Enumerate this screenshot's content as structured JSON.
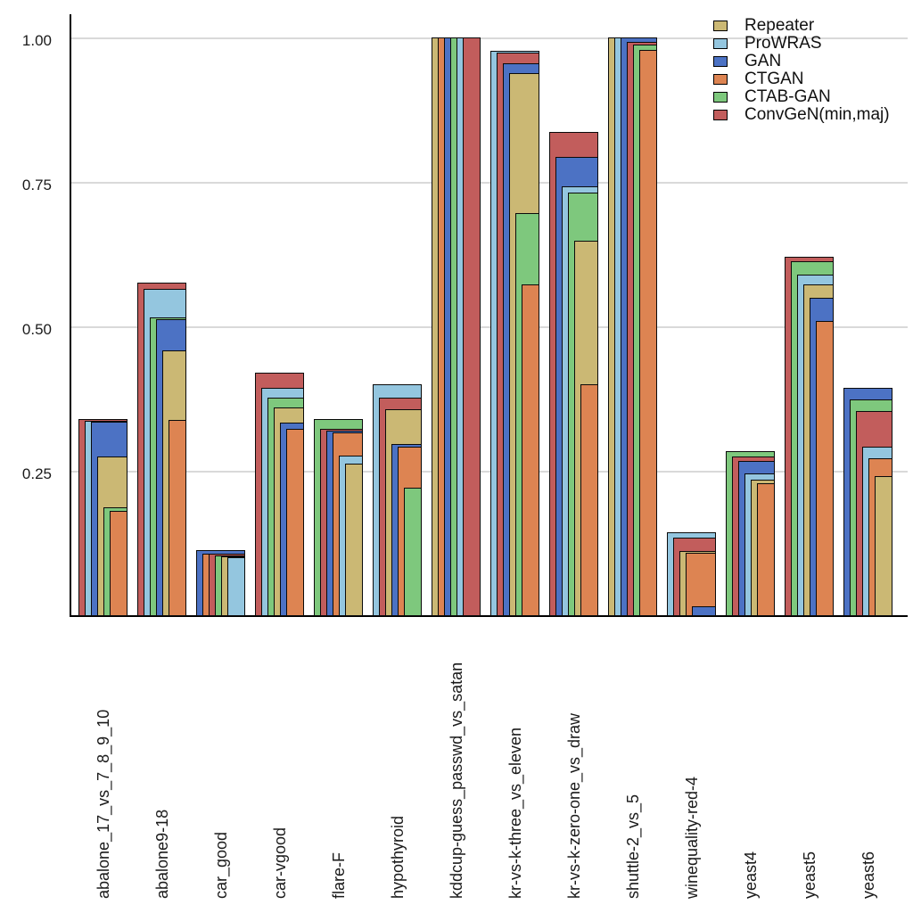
{
  "figure": {
    "background": "#ffffff",
    "gridline_color": "#d9d9d9",
    "axis_color": "#000000",
    "bar_border_color": "#0a0a0a"
  },
  "y_axis": {
    "tick_labels": [
      "1.00",
      "0.75",
      "0.50",
      "0.25"
    ],
    "tick_values": [
      1.0,
      0.75,
      0.5,
      0.25
    ]
  },
  "legend": {
    "items": [
      {
        "label": "Repeater",
        "color": "#CBB874"
      },
      {
        "label": "ProWRAS",
        "color": "#94C6DF"
      },
      {
        "label": "GAN",
        "color": "#4C72C4"
      },
      {
        "label": "CTGAN",
        "color": "#DD8452"
      },
      {
        "label": "CTAB-GAN",
        "color": "#7EC87D"
      },
      {
        "label": "ConvGeN(min,maj)",
        "color": "#C25D5C"
      }
    ]
  },
  "chart_data": {
    "type": "bar",
    "variant": "nested-overlapping-bars-sorted-desc",
    "title": "",
    "xlabel": "",
    "ylabel": "",
    "ylim": [
      0,
      1.02
    ],
    "grid": "horizontal",
    "legend_position": "top-right",
    "categories": [
      "abalone_17_vs_7_8_9_10",
      "abalone9-18",
      "car_good",
      "car-vgood",
      "flare-F",
      "hypothyroid",
      "kddcup-guess_passwd_vs_satan",
      "kr-vs-k-three_vs_eleven",
      "kr-vs-k-zero-one_vs_draw",
      "shuttle-2_vs_5",
      "winequality-red-4",
      "yeast4",
      "yeast5",
      "yeast6"
    ],
    "series": [
      {
        "name": "Repeater",
        "color": "#CBB874",
        "values": [
          0.275,
          0.459,
          0.102,
          0.36,
          0.262,
          0.357,
          1.0,
          0.938,
          0.648,
          1.0,
          0.111,
          0.234,
          0.573,
          0.241
        ]
      },
      {
        "name": "ProWRAS",
        "color": "#94C6DF",
        "values": [
          0.337,
          0.565,
          0.1,
          0.394,
          0.276,
          0.399,
          1.0,
          0.977,
          0.742,
          1.0,
          0.144,
          0.246,
          0.59,
          0.291
        ]
      },
      {
        "name": "GAN",
        "color": "#4C72C4",
        "values": [
          0.335,
          0.512,
          0.113,
          0.333,
          0.319,
          0.296,
          1.0,
          0.956,
          0.793,
          1.0,
          0.016,
          0.267,
          0.55,
          0.393
        ]
      },
      {
        "name": "CTGAN",
        "color": "#DD8452",
        "values": [
          0.181,
          0.338,
          0.107,
          0.322,
          0.316,
          0.292,
          1.0,
          0.573,
          0.399,
          0.979,
          0.108,
          0.229,
          0.509,
          0.271
        ]
      },
      {
        "name": "CTAB-GAN",
        "color": "#7EC87D",
        "values": [
          0.186,
          0.516,
          0.104,
          0.377,
          0.34,
          0.221,
          1.0,
          0.696,
          0.732,
          0.987,
          0.0,
          0.284,
          0.612,
          0.374
        ]
      },
      {
        "name": "ConvGeN(min,maj)",
        "color": "#C25D5C",
        "values": [
          0.34,
          0.575,
          0.106,
          0.42,
          0.322,
          0.376,
          1.0,
          0.974,
          0.836,
          0.993,
          0.134,
          0.275,
          0.62,
          0.354
        ]
      }
    ],
    "groups": [
      {
        "category": "abalone_17_vs_7_8_9_10",
        "bars": [
          {
            "series": "ConvGeN(min,maj)",
            "value": 0.34
          },
          {
            "series": "ProWRAS",
            "value": 0.337
          },
          {
            "series": "GAN",
            "value": 0.335
          },
          {
            "series": "Repeater",
            "value": 0.275
          },
          {
            "series": "CTAB-GAN",
            "value": 0.186
          },
          {
            "series": "CTGAN",
            "value": 0.181
          }
        ]
      },
      {
        "category": "abalone9-18",
        "bars": [
          {
            "series": "ConvGeN(min,maj)",
            "value": 0.575
          },
          {
            "series": "ProWRAS",
            "value": 0.565
          },
          {
            "series": "CTAB-GAN",
            "value": 0.516
          },
          {
            "series": "GAN",
            "value": 0.512
          },
          {
            "series": "Repeater",
            "value": 0.459
          },
          {
            "series": "CTGAN",
            "value": 0.338
          }
        ]
      },
      {
        "category": "car_good",
        "bars": [
          {
            "series": "GAN",
            "value": 0.113
          },
          {
            "series": "CTGAN",
            "value": 0.107
          },
          {
            "series": "ConvGeN(min,maj)",
            "value": 0.106
          },
          {
            "series": "CTAB-GAN",
            "value": 0.104
          },
          {
            "series": "Repeater",
            "value": 0.102
          },
          {
            "series": "ProWRAS",
            "value": 0.1
          }
        ]
      },
      {
        "category": "car-vgood",
        "bars": [
          {
            "series": "ConvGeN(min,maj)",
            "value": 0.42
          },
          {
            "series": "ProWRAS",
            "value": 0.394
          },
          {
            "series": "CTAB-GAN",
            "value": 0.377
          },
          {
            "series": "Repeater",
            "value": 0.36
          },
          {
            "series": "GAN",
            "value": 0.333
          },
          {
            "series": "CTGAN",
            "value": 0.322
          }
        ]
      },
      {
        "category": "flare-F",
        "bars": [
          {
            "series": "CTAB-GAN",
            "value": 0.34
          },
          {
            "series": "ConvGeN(min,maj)",
            "value": 0.322
          },
          {
            "series": "GAN",
            "value": 0.319
          },
          {
            "series": "CTGAN",
            "value": 0.316
          },
          {
            "series": "ProWRAS",
            "value": 0.276
          },
          {
            "series": "Repeater",
            "value": 0.262
          }
        ]
      },
      {
        "category": "hypothyroid",
        "bars": [
          {
            "series": "ProWRAS",
            "value": 0.399
          },
          {
            "series": "ConvGeN(min,maj)",
            "value": 0.376
          },
          {
            "series": "Repeater",
            "value": 0.357
          },
          {
            "series": "GAN",
            "value": 0.296
          },
          {
            "series": "CTGAN",
            "value": 0.292
          },
          {
            "series": "CTAB-GAN",
            "value": 0.221
          }
        ]
      },
      {
        "category": "kddcup-guess_passwd_vs_satan",
        "bars": [
          {
            "series": "Repeater",
            "value": 1.0
          },
          {
            "series": "CTGAN",
            "value": 1.0
          },
          {
            "series": "GAN",
            "value": 1.0
          },
          {
            "series": "CTAB-GAN",
            "value": 1.0
          },
          {
            "series": "ProWRAS",
            "value": 1.0
          },
          {
            "series": "ConvGeN(min,maj)",
            "value": 1.0
          }
        ]
      },
      {
        "category": "kr-vs-k-three_vs_eleven",
        "bars": [
          {
            "series": "ProWRAS",
            "value": 0.977
          },
          {
            "series": "ConvGeN(min,maj)",
            "value": 0.974
          },
          {
            "series": "GAN",
            "value": 0.956
          },
          {
            "series": "Repeater",
            "value": 0.938
          },
          {
            "series": "CTAB-GAN",
            "value": 0.696
          },
          {
            "series": "CTGAN",
            "value": 0.573
          }
        ]
      },
      {
        "category": "kr-vs-k-zero-one_vs_draw",
        "bars": [
          {
            "series": "ConvGeN(min,maj)",
            "value": 0.836
          },
          {
            "series": "GAN",
            "value": 0.793
          },
          {
            "series": "ProWRAS",
            "value": 0.742
          },
          {
            "series": "CTAB-GAN",
            "value": 0.732
          },
          {
            "series": "Repeater",
            "value": 0.648
          },
          {
            "series": "CTGAN",
            "value": 0.399
          }
        ]
      },
      {
        "category": "shuttle-2_vs_5",
        "bars": [
          {
            "series": "Repeater",
            "value": 1.0
          },
          {
            "series": "ProWRAS",
            "value": 1.0
          },
          {
            "series": "GAN",
            "value": 1.0
          },
          {
            "series": "ConvGeN(min,maj)",
            "value": 0.993
          },
          {
            "series": "CTAB-GAN",
            "value": 0.987
          },
          {
            "series": "CTGAN",
            "value": 0.979
          }
        ]
      },
      {
        "category": "winequality-red-4",
        "bars": [
          {
            "series": "ProWRAS",
            "value": 0.144
          },
          {
            "series": "ConvGeN(min,maj)",
            "value": 0.134
          },
          {
            "series": "Repeater",
            "value": 0.111
          },
          {
            "series": "CTGAN",
            "value": 0.108
          },
          {
            "series": "GAN",
            "value": 0.016
          },
          {
            "series": "CTAB-GAN",
            "value": 0.0
          }
        ]
      },
      {
        "category": "yeast4",
        "bars": [
          {
            "series": "CTAB-GAN",
            "value": 0.284
          },
          {
            "series": "ConvGeN(min,maj)",
            "value": 0.275
          },
          {
            "series": "GAN",
            "value": 0.267
          },
          {
            "series": "ProWRAS",
            "value": 0.246
          },
          {
            "series": "Repeater",
            "value": 0.234
          },
          {
            "series": "CTGAN",
            "value": 0.229
          }
        ]
      },
      {
        "category": "yeast5",
        "bars": [
          {
            "series": "ConvGeN(min,maj)",
            "value": 0.62
          },
          {
            "series": "CTAB-GAN",
            "value": 0.612
          },
          {
            "series": "ProWRAS",
            "value": 0.59
          },
          {
            "series": "Repeater",
            "value": 0.573
          },
          {
            "series": "GAN",
            "value": 0.55
          },
          {
            "series": "CTGAN",
            "value": 0.509
          }
        ]
      },
      {
        "category": "yeast6",
        "bars": [
          {
            "series": "GAN",
            "value": 0.393
          },
          {
            "series": "CTAB-GAN",
            "value": 0.374
          },
          {
            "series": "ConvGeN(min,maj)",
            "value": 0.354
          },
          {
            "series": "ProWRAS",
            "value": 0.291
          },
          {
            "series": "CTGAN",
            "value": 0.271
          },
          {
            "series": "Repeater",
            "value": 0.241
          }
        ]
      }
    ]
  }
}
